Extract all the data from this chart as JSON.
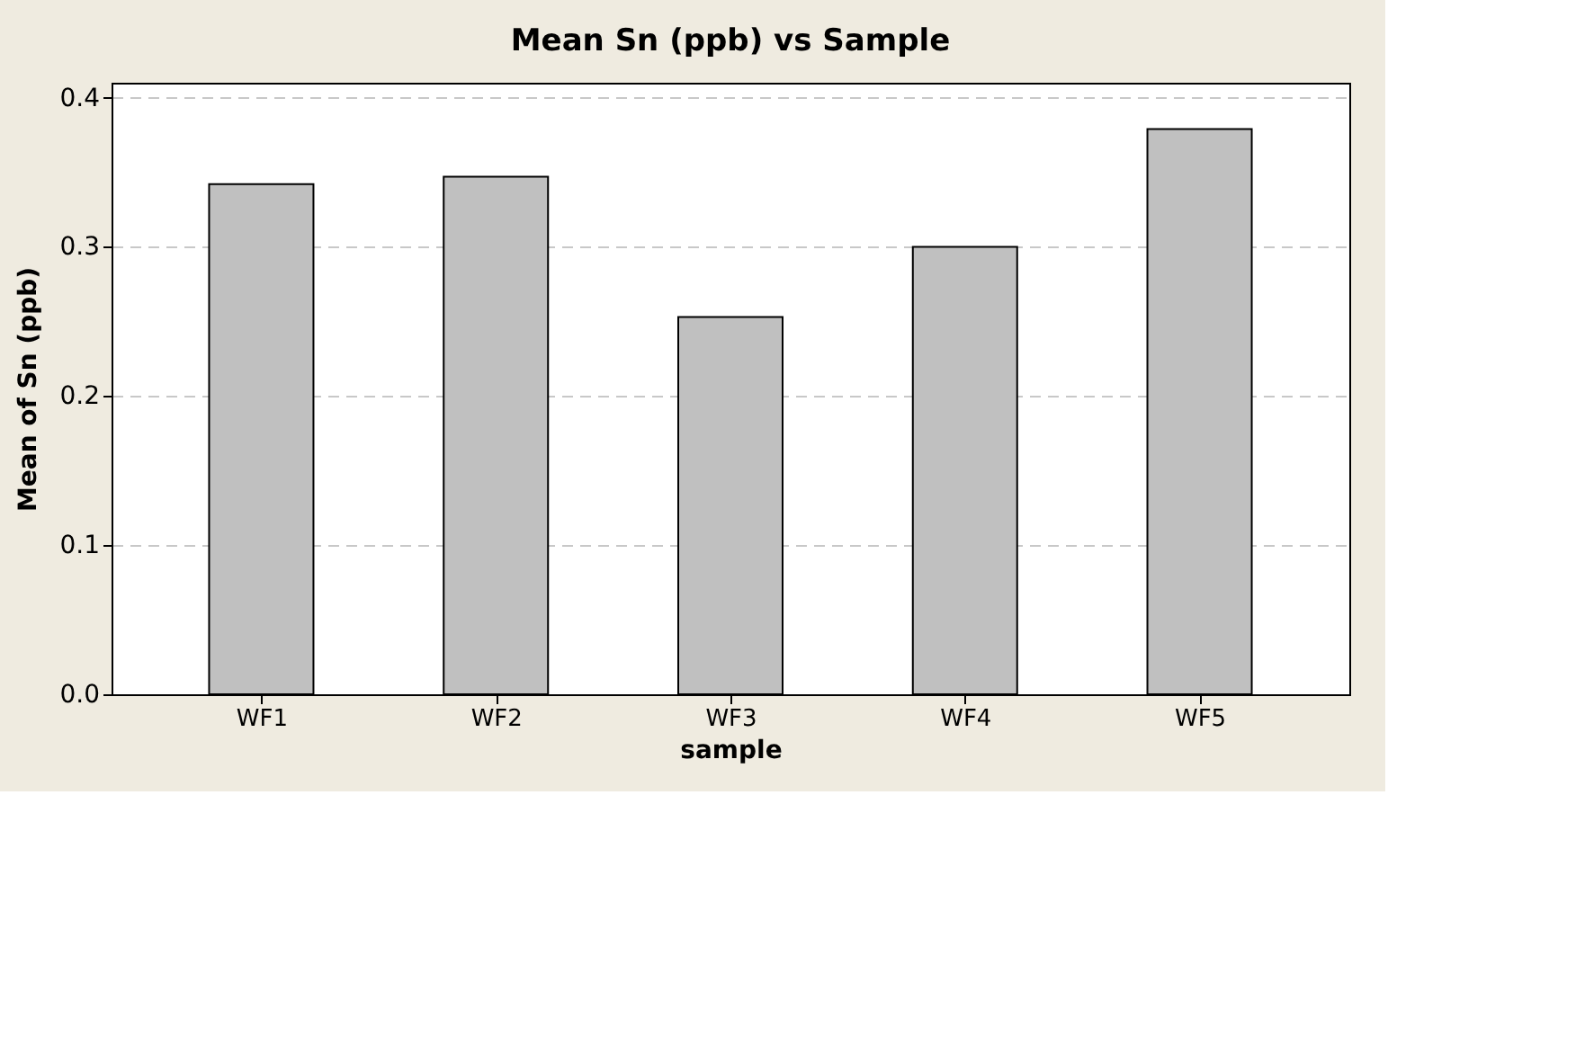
{
  "chart_data": {
    "type": "bar",
    "title": "Mean Sn (ppb) vs Sample",
    "xlabel": "sample",
    "ylabel": "Mean of Sn (ppb)",
    "categories": [
      "WF1",
      "WF2",
      "WF3",
      "WF4",
      "WF5"
    ],
    "values": [
      0.342,
      0.347,
      0.253,
      0.3,
      0.379
    ],
    "color": "#c0c0c0",
    "ylim": [
      0,
      0.41
    ],
    "yticks": [
      {
        "value": 0,
        "label": "0.0"
      },
      0.1,
      0.2,
      0.3,
      0.4
    ],
    "grid": "y"
  }
}
